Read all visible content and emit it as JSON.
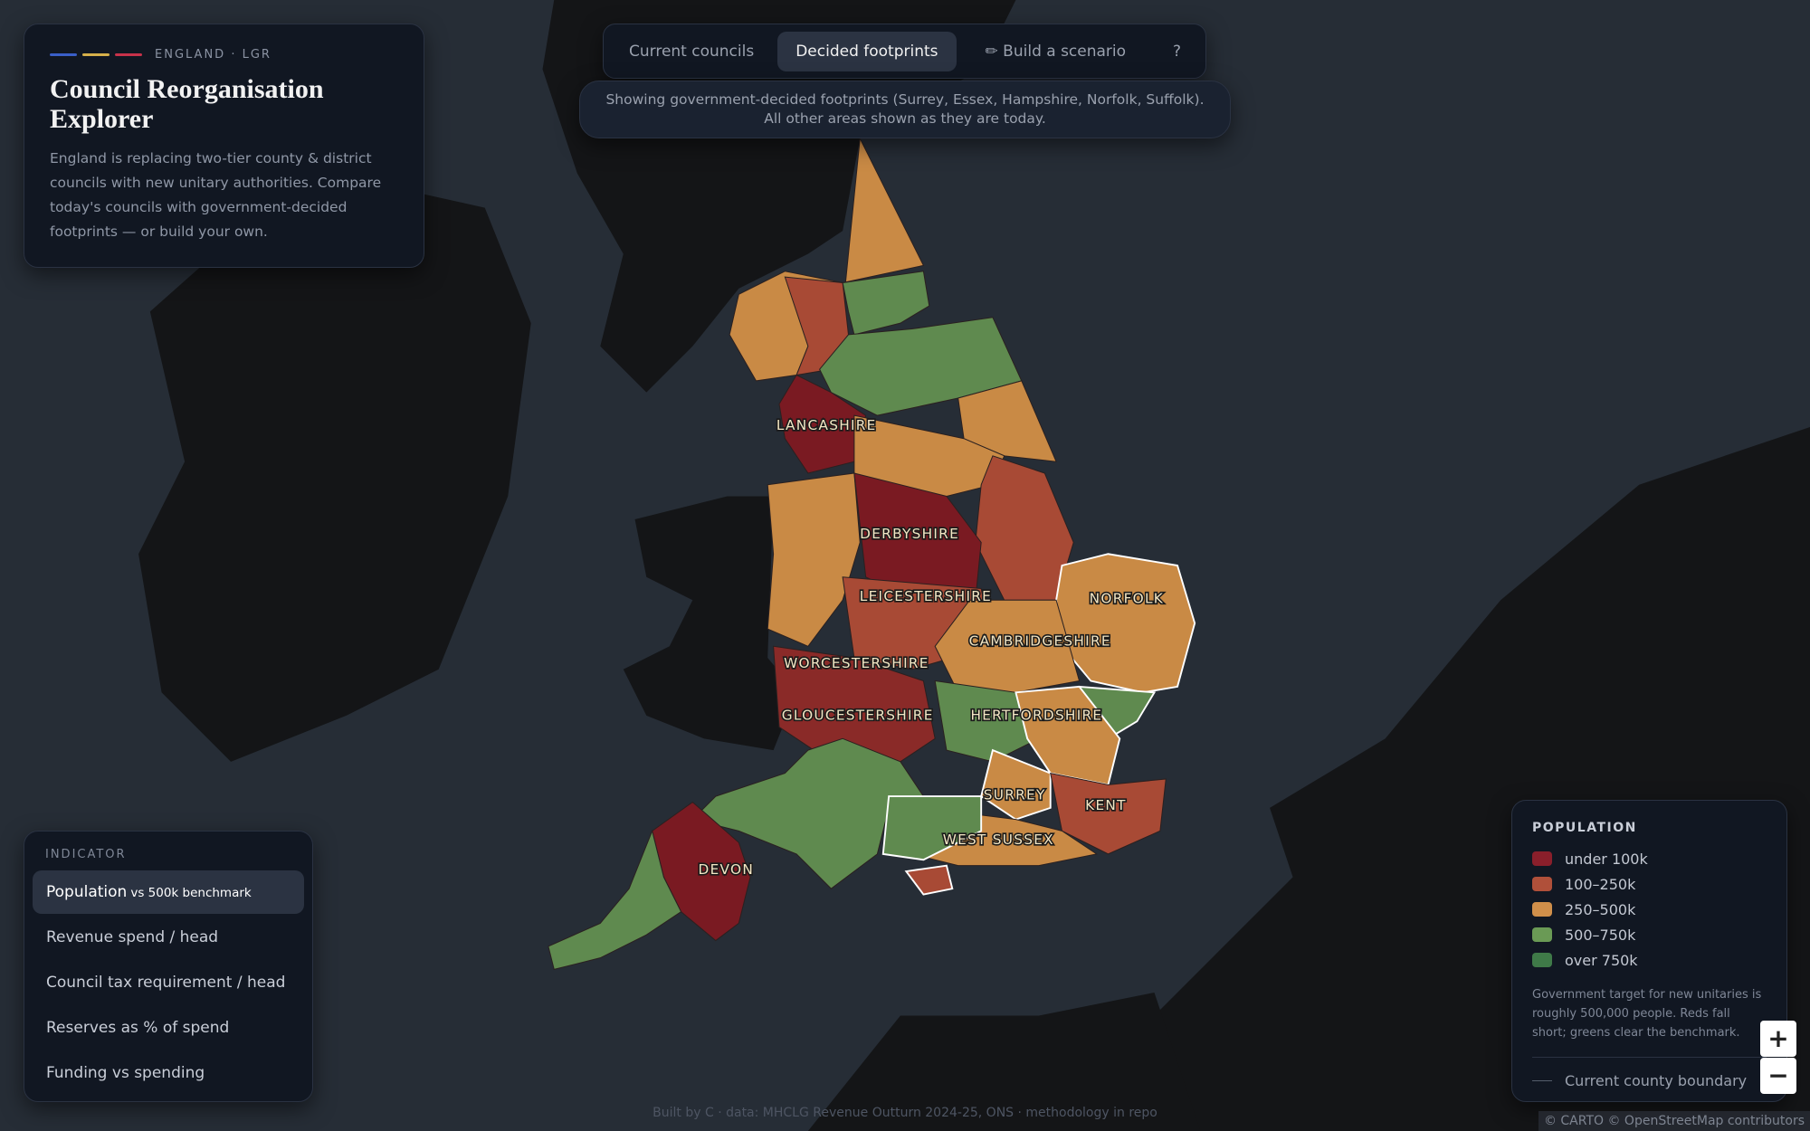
{
  "header": {
    "eyebrow": "ENGLAND · LGR",
    "title": "Council Reorganisation Explorer",
    "description": "England is replacing two-tier county & district councils with new unitary authorities. Compare today's councils with government-decided footprints — or build your own."
  },
  "tabs": [
    "Current councils",
    "Decided footprints",
    "✏ Build a scenario",
    "?"
  ],
  "active_tab": 1,
  "notice": "Showing government-decided footprints (Surrey, Essex, Hampshire, Norfolk, Suffolk). All other areas shown as they are today.",
  "map_labels": [
    "LANCASHIRE",
    "DERBYSHIRE",
    "LEICESTERSHIRE",
    "NORFOLK",
    "CAMBRIDGESHIRE",
    "WORCESTERSHIRE",
    "GLOUCESTERSHIRE",
    "HERTFORDSHIRE",
    "SURREY",
    "KENT",
    "WEST SUSSEX",
    "DEVON"
  ],
  "indicator": {
    "heading": "INDICATOR",
    "items": [
      {
        "label": "Population",
        "sub": "vs 500k benchmark"
      },
      {
        "label": "Revenue spend / head"
      },
      {
        "label": "Council tax requirement / head"
      },
      {
        "label": "Reserves as % of spend"
      },
      {
        "label": "Funding vs spending"
      }
    ],
    "active": 0
  },
  "legend": {
    "title": "POPULATION",
    "items": [
      {
        "label": "under 100k",
        "color": "#8a1f2b"
      },
      {
        "label": "100–250k",
        "color": "#b0503a"
      },
      {
        "label": "250–500k",
        "color": "#d08f4a"
      },
      {
        "label": "500–750k",
        "color": "#6a9a55"
      },
      {
        "label": "over 750k",
        "color": "#3f7a48"
      }
    ],
    "note": "Government target for new unitaries is roughly 500,000 people. Reds fall short; greens clear the benchmark.",
    "boundary": "Current county boundary"
  },
  "zoom": [
    "+",
    "−"
  ],
  "footer": "Built by C · data: MHCLG Revenue Outturn 2024-25, ONS · methodology in repo",
  "attribution": "© CARTO © OpenStreetMap contributors"
}
